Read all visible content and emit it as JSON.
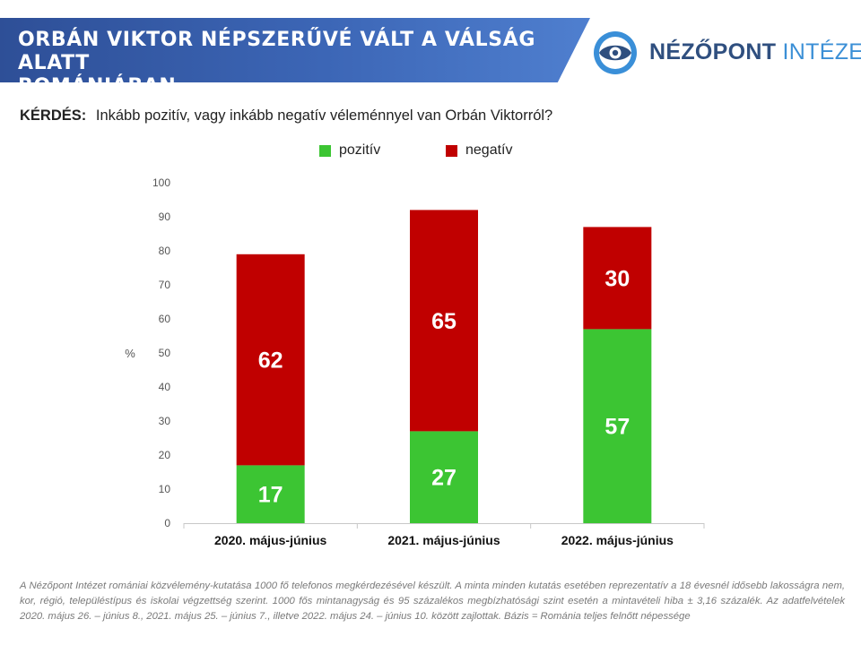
{
  "header": {
    "title_line1": "ORBÁN VIKTOR NÉPSZERŰVÉ VÁLT A VÁLSÁG ALATT",
    "title_line2": "ROMÁNIÁBAN"
  },
  "logo": {
    "word1": "NÉZŐPONT",
    "word2": "INTÉZET"
  },
  "question": {
    "label": "KÉRDÉS:",
    "text": "Inkább pozitív, vagy inkább negatív véleménnyel van Orbán Viktorról?"
  },
  "colors": {
    "positive": "#3cc533",
    "negative": "#c00000",
    "axis": "#c8c8c8"
  },
  "chart_data": {
    "type": "bar",
    "stacked": true,
    "categories": [
      "2020. május-június",
      "2021. május-június",
      "2022. május-június"
    ],
    "series": [
      {
        "name": "pozitív",
        "values": [
          17,
          27,
          57
        ]
      },
      {
        "name": "negatív",
        "values": [
          62,
          65,
          30
        ]
      }
    ],
    "ylabel": "%",
    "ylim": [
      0,
      100
    ],
    "yticks": [
      0,
      10,
      20,
      30,
      40,
      50,
      60,
      70,
      80,
      90,
      100
    ],
    "legend": "top-center",
    "grid": false
  },
  "footnote": "A Nézőpont Intézet romániai közvélemény-kutatása 1000 fő telefonos megkérdezésével készült. A minta minden kutatás esetében reprezentatív a 18 évesnél idősebb lakosságra nem, kor, régió, településtípus és iskolai végzettség szerint. 1000 fős mintanagyság és 95 százalékos megbízhatósági szint esetén a mintavételi hiba ± 3,16 százalék. Az adatfelvételek 2020. május 26. – június 8., 2021. május 25. – június 7., illetve 2022. május 24. – június 10. között zajlottak. Bázis = Románia teljes felnőtt népessége"
}
